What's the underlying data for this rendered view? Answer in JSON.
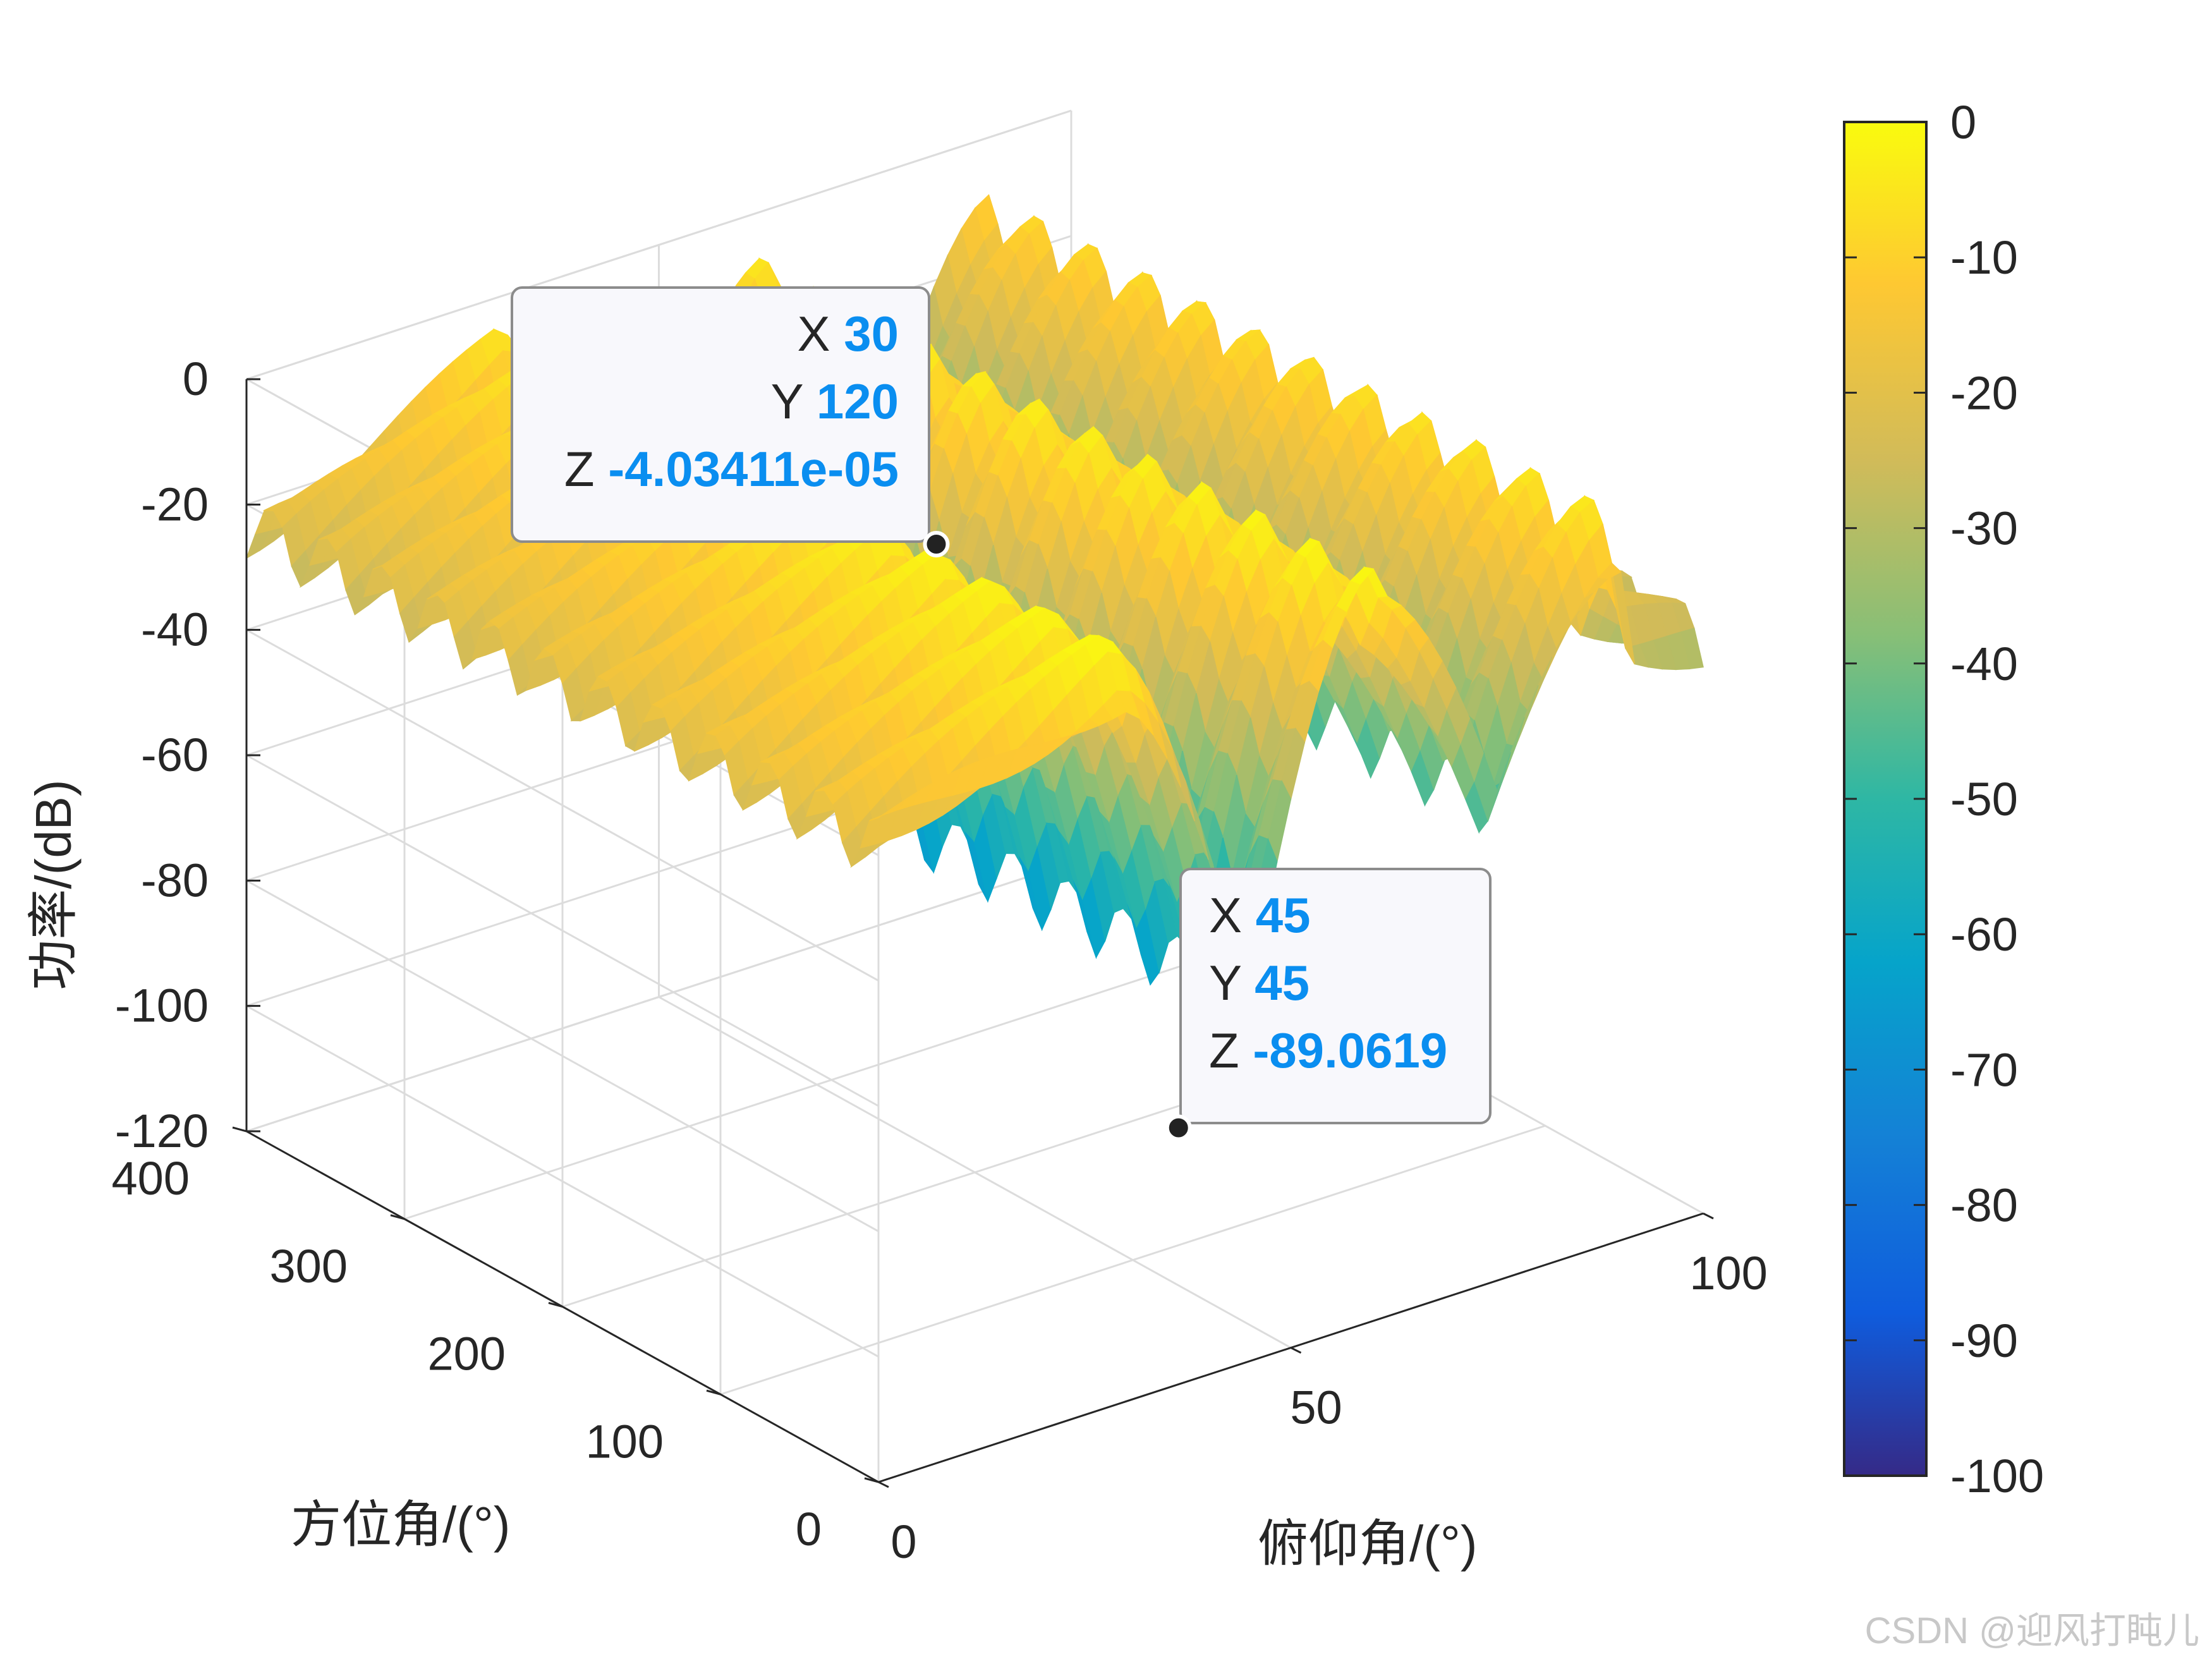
{
  "chart_data": {
    "type": "surface",
    "xlabel": "俯仰角/(°)",
    "ylabel": "方位角/(°)",
    "zlabel": "功率/(dB)",
    "xlim": [
      0,
      100
    ],
    "ylim": [
      0,
      400
    ],
    "zlim": [
      -120,
      0
    ],
    "xticks": [
      "0",
      "50",
      "100"
    ],
    "yticks": [
      "0",
      "100",
      "200",
      "300",
      "400"
    ],
    "zticks": [
      "0",
      "-20",
      "-40",
      "-60",
      "-80",
      "-100",
      "-120"
    ],
    "colorbar": {
      "limits": [
        -100,
        0
      ],
      "ticks": [
        "0",
        "-10",
        "-20",
        "-30",
        "-40",
        "-50",
        "-60",
        "-70",
        "-80",
        "-90",
        "-100"
      ],
      "colormap": "parula",
      "colors": [
        "#352a87",
        "#0f5cdd",
        "#1481d6",
        "#06a4ca",
        "#2eb7a4",
        "#87bf77",
        "#d1bb59",
        "#fec832",
        "#f9fb0e"
      ]
    },
    "grid": true,
    "datatips": [
      {
        "x": 30,
        "y": 120,
        "z": "-4.03411e-05",
        "x_label": "X",
        "y_label": "Y",
        "z_label": "Z"
      },
      {
        "x": 45,
        "y": 45,
        "z": "-89.0619",
        "x_label": "X",
        "y_label": "Y",
        "z_label": "Z"
      }
    ],
    "ridges": [
      {
        "x": 30,
        "peak_z": 0
      },
      {
        "x": 60,
        "peak_z": 0
      },
      {
        "x": 90,
        "peak_z": -20
      }
    ],
    "nulls": [
      {
        "x": 45,
        "min_z": -89
      },
      {
        "x": 75,
        "min_z": -70
      }
    ]
  },
  "watermark": "CSDN @迎风打盹儿",
  "colors": {
    "datatip_value": "#0a8ef0",
    "axis": "#262626",
    "grid": "#dcdcdc"
  }
}
